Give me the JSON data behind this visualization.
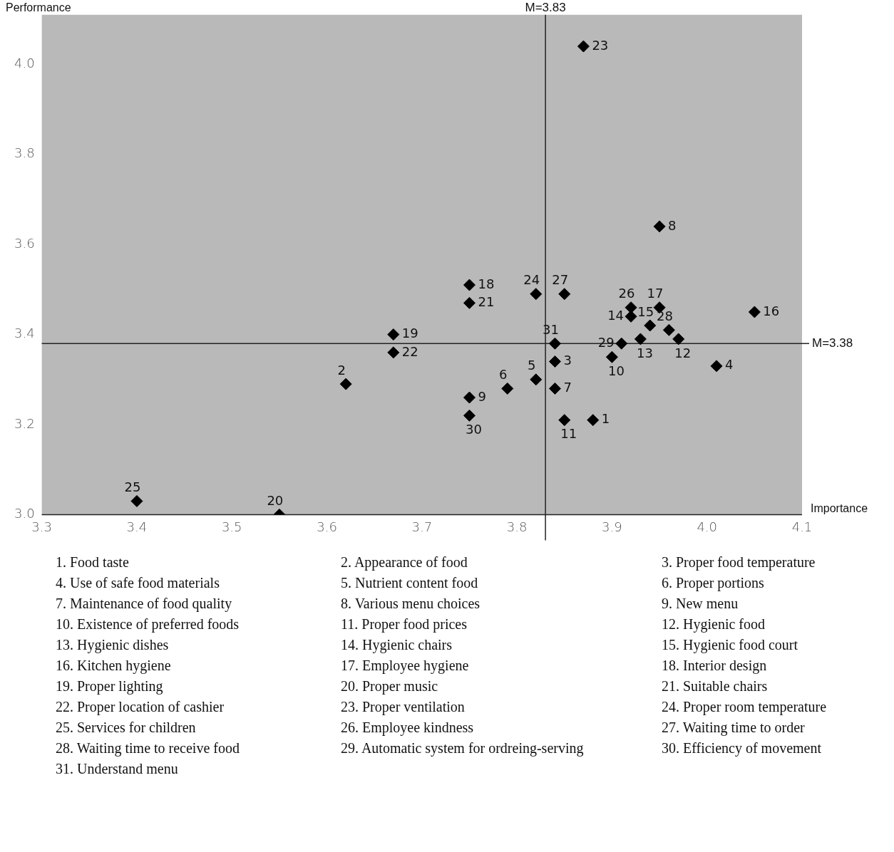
{
  "chart_data": {
    "type": "scatter",
    "xlabel": "Importance",
    "ylabel": "Performance",
    "xlim": [
      3.3,
      4.1
    ],
    "xticks": [
      3.3,
      3.4,
      3.5,
      3.6,
      3.7,
      3.8,
      3.9,
      {
        "value": 4,
        "label": "4.0"
      },
      4.1
    ],
    "ylim": [
      3,
      4.11
    ],
    "yticks": [
      {
        "value": 3,
        "label": "3.0"
      },
      3.2,
      3.4,
      3.6,
      3.8,
      {
        "value": 4,
        "label": "4.0"
      }
    ],
    "grid": false,
    "legend": false,
    "marker": "diamond",
    "series": [
      {
        "color": "#000000",
        "x": [
          3.88,
          3.62,
          3.84,
          4.01,
          3.82,
          3.79,
          3.84,
          3.95,
          3.75,
          3.9,
          3.85,
          3.97,
          3.93,
          3.92,
          3.94,
          4.05,
          3.95,
          3.75,
          3.67,
          3.55,
          3.75,
          3.67,
          3.87,
          3.82,
          3.4,
          3.92,
          3.85,
          3.96,
          3.91,
          3.75,
          3.84
        ],
        "values": [
          3.21,
          3.29,
          3.34,
          3.33,
          3.3,
          3.28,
          3.28,
          3.64,
          3.26,
          3.35,
          3.21,
          3.39,
          3.39,
          3.44,
          3.42,
          3.45,
          3.46,
          3.51,
          3.4,
          3.0,
          3.47,
          3.36,
          4.04,
          3.49,
          3.03,
          3.46,
          3.49,
          3.41,
          3.38,
          3.22,
          3.38
        ]
      }
    ],
    "ref_lines": [
      {
        "axis": "x",
        "value": 3.83,
        "label": "M=3.83"
      },
      {
        "axis": "y",
        "value": 3.38,
        "label": "M=3.38"
      }
    ],
    "annotations": [
      {
        "text": "1",
        "x": 3.88,
        "y": 3.21
      },
      {
        "text": "2",
        "x": 3.62,
        "y": 3.29
      },
      {
        "text": "3",
        "x": 3.84,
        "y": 3.34
      },
      {
        "text": "4",
        "x": 4.01,
        "y": 3.33
      },
      {
        "text": "5",
        "x": 3.82,
        "y": 3.3
      },
      {
        "text": "6",
        "x": 3.79,
        "y": 3.28
      },
      {
        "text": "7",
        "x": 3.84,
        "y": 3.28
      },
      {
        "text": "8",
        "x": 3.95,
        "y": 3.64
      },
      {
        "text": "9",
        "x": 3.75,
        "y": 3.26
      },
      {
        "text": "10",
        "x": 3.9,
        "y": 3.35
      },
      {
        "text": "11",
        "x": 3.85,
        "y": 3.21
      },
      {
        "text": "12",
        "x": 3.97,
        "y": 3.39
      },
      {
        "text": "13",
        "x": 3.93,
        "y": 3.39
      },
      {
        "text": "14",
        "x": 3.92,
        "y": 3.44
      },
      {
        "text": "15",
        "x": 3.94,
        "y": 3.42
      },
      {
        "text": "16",
        "x": 4.05,
        "y": 3.45
      },
      {
        "text": "17",
        "x": 3.95,
        "y": 3.46
      },
      {
        "text": "18",
        "x": 3.75,
        "y": 3.51
      },
      {
        "text": "19",
        "x": 3.67,
        "y": 3.4
      },
      {
        "text": "20",
        "x": 3.55,
        "y": 3.0
      },
      {
        "text": "21",
        "x": 3.75,
        "y": 3.47
      },
      {
        "text": "22",
        "x": 3.67,
        "y": 3.36
      },
      {
        "text": "23",
        "x": 3.87,
        "y": 4.04
      },
      {
        "text": "24",
        "x": 3.82,
        "y": 3.49
      },
      {
        "text": "25",
        "x": 3.4,
        "y": 3.03
      },
      {
        "text": "26",
        "x": 3.92,
        "y": 3.46
      },
      {
        "text": "27",
        "x": 3.85,
        "y": 3.49
      },
      {
        "text": "28",
        "x": 3.96,
        "y": 3.41
      },
      {
        "text": "29",
        "x": 3.91,
        "y": 3.38
      },
      {
        "text": "30",
        "x": 3.75,
        "y": 3.22
      },
      {
        "text": "31",
        "x": 3.84,
        "y": 3.38
      },
      "1. Food taste",
      "2. Appearance of food",
      "3. Proper food temperature",
      "4. Use of safe food materials",
      "5. Nutrient content food",
      "6. Proper portions",
      "7. Maintenance of food quality",
      "8. Various menu choices",
      "9. New menu",
      "10. Existence of preferred foods",
      "11. Proper food prices",
      "12. Hygienic food",
      "13. Hygienic dishes",
      "14. Hygienic chairs",
      "15. Hygienic food court",
      "16. Kitchen hygiene",
      "17. Employee hygiene",
      "18. Interior design",
      "19. Proper lighting",
      "20. Proper music",
      "21. Suitable chairs",
      "22. Proper location of cashier",
      "23. Proper ventilation",
      "24. Proper room temperature",
      "25. Services for children",
      "26. Employee kindness",
      "27. Waiting time to order",
      "28. Waiting time to receive food",
      "29. Automatic system for ordreing-serving",
      "30. Efficiency of movement",
      "31. Understand menu"
    ]
  }
}
